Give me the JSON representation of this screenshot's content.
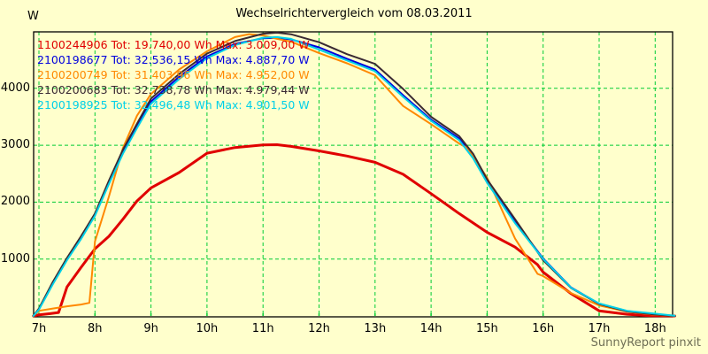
{
  "chart_data": {
    "type": "line",
    "title": "Wechselrichtervergleich vom 08.03.2011",
    "y_unit_label": "W",
    "footer": "SunnyReport pinxit",
    "background_color": "#ffffcc",
    "grid_color": "#00cc33",
    "border_color": "#000000",
    "grid": true,
    "legend_position": "top-left-inside",
    "ylim": [
      0,
      5000
    ],
    "xlim": [
      6.9,
      18.35
    ],
    "y_ticks": [
      {
        "value": 1000,
        "label": "1000"
      },
      {
        "value": 2000,
        "label": "2000"
      },
      {
        "value": 3000,
        "label": "3000"
      },
      {
        "value": 4000,
        "label": "4000"
      }
    ],
    "x_ticks": [
      {
        "hour": 7,
        "label": "7h"
      },
      {
        "hour": 8,
        "label": "8h"
      },
      {
        "hour": 9,
        "label": "9h"
      },
      {
        "hour": 10,
        "label": "10h"
      },
      {
        "hour": 11,
        "label": "11h"
      },
      {
        "hour": 12,
        "label": "12h"
      },
      {
        "hour": 13,
        "label": "13h"
      },
      {
        "hour": 14,
        "label": "14h"
      },
      {
        "hour": 15,
        "label": "15h"
      },
      {
        "hour": 16,
        "label": "16h"
      },
      {
        "hour": 17,
        "label": "17h"
      },
      {
        "hour": 18,
        "label": "18h"
      }
    ],
    "series": [
      {
        "id": "1100244906",
        "legend": "1100244906 Tot: 19.740,00 Wh Max: 3.009,00 W",
        "total_wh": "19.740,00",
        "max_w": "3.009,00",
        "color": "#e00000",
        "stroke_width": 3,
        "x": [
          6.9,
          7.0,
          7.2,
          7.35,
          7.5,
          7.75,
          8.0,
          8.25,
          8.5,
          8.75,
          9.0,
          9.5,
          10.0,
          10.5,
          11.0,
          11.25,
          11.5,
          12.0,
          12.5,
          13.0,
          13.5,
          14.0,
          14.5,
          15.0,
          15.5,
          15.9,
          16.0,
          16.5,
          17.0,
          17.5,
          17.9,
          18.35
        ],
        "y": [
          0,
          20,
          40,
          60,
          510,
          850,
          1180,
          1400,
          1700,
          2020,
          2250,
          2520,
          2860,
          2960,
          3005,
          3009,
          2980,
          2900,
          2810,
          2700,
          2490,
          2150,
          1800,
          1470,
          1210,
          900,
          770,
          390,
          90,
          30,
          5,
          0
        ]
      },
      {
        "id": "2100198677",
        "legend": "2100198677 Tot: 32.536,15 Wh Max: 4.887,70 W",
        "total_wh": "32.536,15",
        "max_w": "4.887,70",
        "color": "#0000dd",
        "stroke_width": 2,
        "x": [
          6.9,
          7.0,
          7.25,
          7.5,
          7.75,
          8.0,
          8.25,
          8.5,
          8.75,
          9.0,
          9.5,
          10.0,
          10.5,
          11.0,
          11.25,
          11.5,
          12.0,
          12.5,
          13.0,
          13.5,
          14.0,
          14.5,
          14.75,
          15.0,
          15.5,
          16.0,
          16.5,
          17.0,
          17.5,
          18.0,
          18.35
        ],
        "y": [
          0,
          120,
          580,
          1000,
          1380,
          1780,
          2350,
          2880,
          3340,
          3770,
          4200,
          4560,
          4780,
          4880,
          4888,
          4860,
          4720,
          4520,
          4330,
          3880,
          3450,
          3120,
          2800,
          2360,
          1660,
          1010,
          500,
          215,
          85,
          30,
          0
        ]
      },
      {
        "id": "2100200749",
        "legend": "2100200749 Tot: 31.403,96 Wh Max: 4.952,00 W",
        "total_wh": "31.403,96",
        "max_w": "4.952,00",
        "color": "#ff8800",
        "stroke_width": 2,
        "x": [
          6.9,
          7.0,
          7.25,
          7.5,
          7.75,
          7.9,
          8.0,
          8.25,
          8.5,
          8.75,
          9.0,
          9.5,
          10.0,
          10.5,
          10.75,
          11.0,
          11.25,
          11.5,
          12.0,
          12.5,
          13.0,
          13.5,
          14.0,
          14.5,
          14.65,
          15.0,
          15.5,
          15.9,
          16.0,
          16.5,
          17.0,
          17.5,
          18.0,
          18.35
        ],
        "y": [
          0,
          90,
          130,
          170,
          200,
          230,
          1310,
          2100,
          2950,
          3520,
          3900,
          4330,
          4650,
          4900,
          4952,
          4930,
          4870,
          4820,
          4620,
          4440,
          4230,
          3690,
          3370,
          3030,
          2950,
          2430,
          1360,
          740,
          700,
          400,
          185,
          75,
          20,
          0
        ]
      },
      {
        "id": "2100200683",
        "legend": "2100200683 Tot: 32.738,78 Wh Max: 4.979,44 W",
        "total_wh": "32.738,78",
        "max_w": "4.979,44",
        "color": "#3a2a33",
        "stroke_width": 2,
        "x": [
          6.9,
          7.0,
          7.25,
          7.5,
          7.75,
          8.0,
          8.25,
          8.5,
          8.75,
          9.0,
          9.5,
          10.0,
          10.5,
          11.0,
          11.25,
          11.5,
          12.0,
          12.5,
          13.0,
          13.5,
          14.0,
          14.5,
          14.75,
          15.0,
          15.5,
          16.0,
          16.5,
          17.0,
          17.5,
          18.0,
          18.35
        ],
        "y": [
          0,
          130,
          600,
          1020,
          1400,
          1800,
          2380,
          2920,
          3380,
          3820,
          4250,
          4610,
          4830,
          4960,
          4979,
          4950,
          4810,
          4600,
          4430,
          3990,
          3500,
          3160,
          2850,
          2400,
          1700,
          980,
          490,
          210,
          80,
          25,
          0
        ]
      },
      {
        "id": "2100198925",
        "legend": "2100198925 Tot: 32.496,48 Wh Max: 4.901,50 W",
        "total_wh": "32.496,48",
        "max_w": "4.901,50",
        "color": "#00d0e8",
        "stroke_width": 2,
        "x": [
          6.9,
          7.0,
          7.25,
          7.5,
          7.75,
          8.0,
          8.25,
          8.5,
          8.75,
          9.0,
          9.5,
          10.0,
          10.5,
          11.0,
          11.25,
          11.5,
          12.0,
          12.5,
          13.0,
          13.5,
          14.0,
          14.5,
          14.75,
          15.0,
          15.5,
          16.0,
          16.5,
          17.0,
          17.5,
          18.0,
          18.35
        ],
        "y": [
          0,
          110,
          560,
          980,
          1350,
          1760,
          2320,
          2850,
          3300,
          3730,
          4160,
          4530,
          4760,
          4890,
          4901,
          4870,
          4680,
          4490,
          4300,
          3850,
          3430,
          3090,
          2770,
          2340,
          1630,
          1000,
          495,
          220,
          90,
          40,
          5
        ]
      }
    ]
  }
}
